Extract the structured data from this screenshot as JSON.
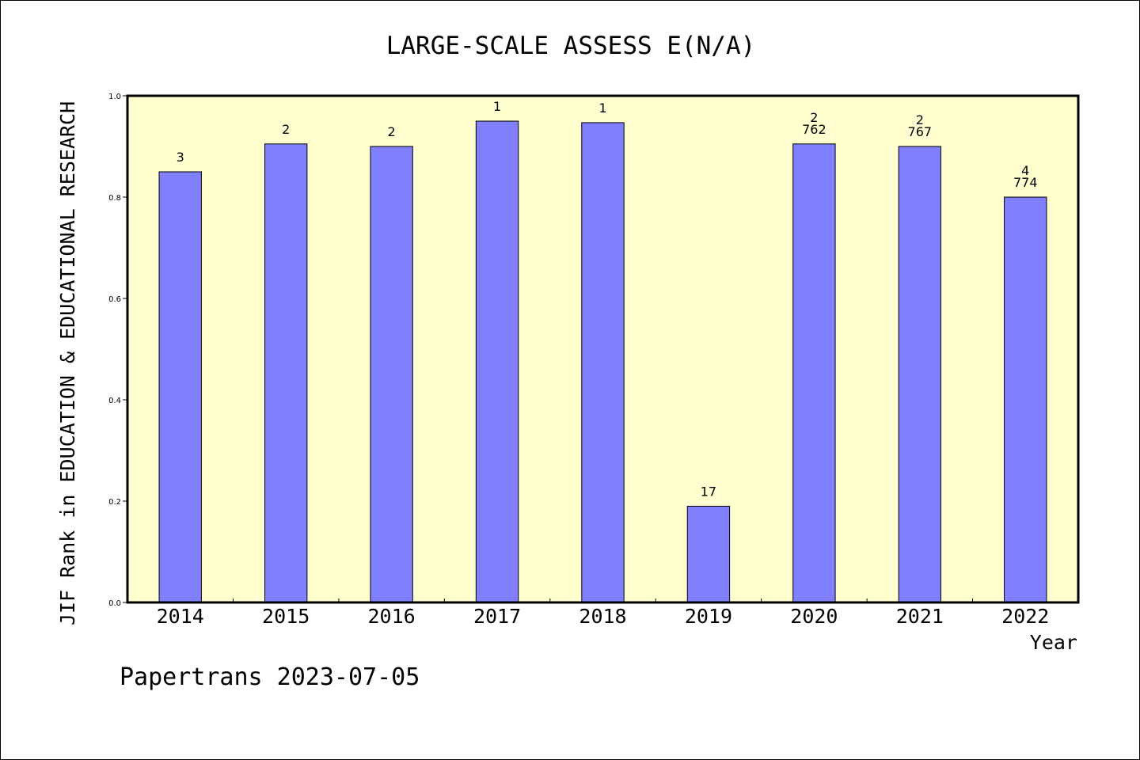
{
  "chart_data": {
    "type": "bar",
    "title": "LARGE-SCALE ASSESS E(N/A)",
    "xlabel": "Year",
    "ylabel": "JIF Rank in EDUCATION & EDUCATIONAL RESEARCH",
    "categories": [
      "2014",
      "2015",
      "2016",
      "2017",
      "2018",
      "2019",
      "2020",
      "2021",
      "2022"
    ],
    "values": [
      0.85,
      0.905,
      0.9,
      0.95,
      0.947,
      0.19,
      0.905,
      0.9,
      0.8
    ],
    "bar_labels": [
      [
        "3"
      ],
      [
        "2"
      ],
      [
        "2"
      ],
      [
        "1"
      ],
      [
        "1"
      ],
      [
        "17"
      ],
      [
        "2",
        "762"
      ],
      [
        "2",
        "767"
      ],
      [
        "4",
        "774"
      ]
    ],
    "ylim": [
      0,
      1.0
    ],
    "yticks": [
      0.0,
      0.2,
      0.4,
      0.6,
      0.8,
      1.0
    ],
    "ytick_labels": [
      "0.0",
      "0.2",
      "0.4",
      "0.6",
      "0.8",
      "1.0"
    ],
    "grid": false,
    "colors": {
      "bar": "#8080ff",
      "plot_background": "#ffffd0",
      "axes": "#000000"
    }
  },
  "footer": {
    "credit": "Papertrans 2023-07-05"
  }
}
